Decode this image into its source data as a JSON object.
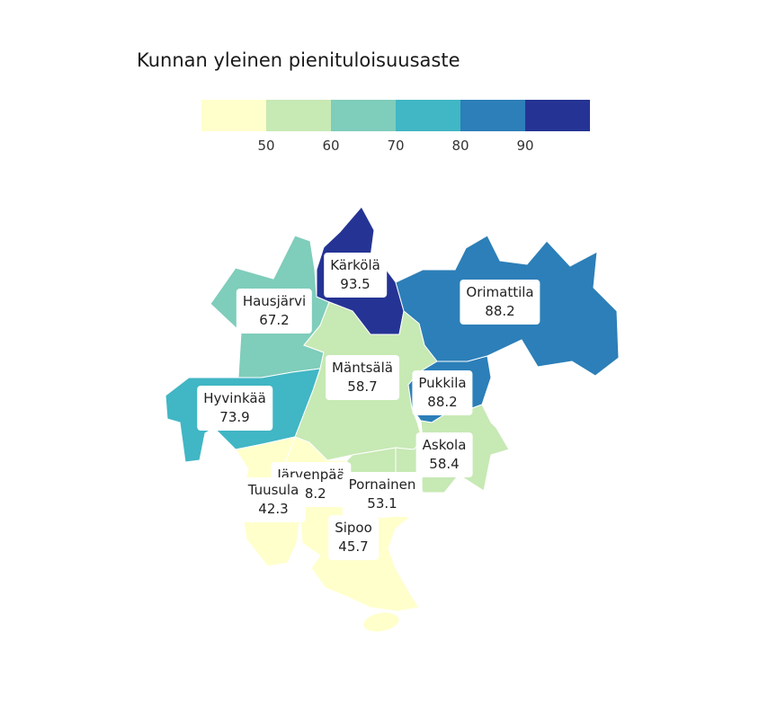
{
  "title": "Kunnan yleinen pienituloisuusaste",
  "legend": {
    "colors": [
      "#ffffcc",
      "#c7e9b4",
      "#7fcdbb",
      "#41b6c4",
      "#2c7fb8",
      "#253494"
    ],
    "ticks": [
      "50",
      "60",
      "70",
      "80",
      "90"
    ]
  },
  "regions": [
    {
      "name": "Kärkölä",
      "value": "93.5",
      "color": "#253494"
    },
    {
      "name": "Hausjärvi",
      "value": "67.2",
      "color": "#7fcdbb"
    },
    {
      "name": "Orimattila",
      "value": "88.2",
      "color": "#2c7fb8"
    },
    {
      "name": "Mäntsälä",
      "value": "58.7",
      "color": "#c7e9b4"
    },
    {
      "name": "Hyvinkää",
      "value": "73.9",
      "color": "#41b6c4"
    },
    {
      "name": "Pukkila",
      "value": "88.2",
      "color": "#2c7fb8"
    },
    {
      "name": "Askola",
      "value": "58.4",
      "color": "#c7e9b4"
    },
    {
      "name": "Järvenpää",
      "value": "48.2",
      "color": "#ffffcc"
    },
    {
      "name": "Tuusula",
      "value": "42.3",
      "color": "#ffffcc"
    },
    {
      "name": "Pornainen",
      "value": "53.1",
      "color": "#c7e9b4"
    },
    {
      "name": "Sipoo",
      "value": "45.7",
      "color": "#ffffcc"
    }
  ]
}
